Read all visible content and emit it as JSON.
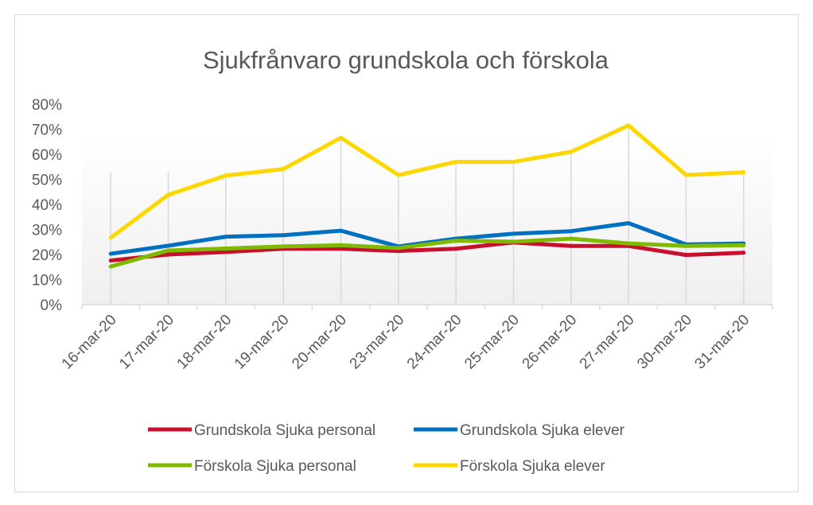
{
  "chart_data": {
    "type": "line",
    "title": "Sjukfrånvaro grundskola och förskola",
    "xlabel": "",
    "ylabel": "",
    "ylim": [
      0,
      0.8
    ],
    "yticks": [
      "0%",
      "10%",
      "20%",
      "30%",
      "40%",
      "50%",
      "60%",
      "70%",
      "80%"
    ],
    "categories": [
      "16-mar-20",
      "17-mar-20",
      "18-mar-20",
      "19-mar-20",
      "20-mar-20",
      "23-mar-20",
      "24-mar-20",
      "25-mar-20",
      "26-mar-20",
      "27-mar-20",
      "30-mar-20",
      "31-mar-20"
    ],
    "legend_position": "bottom",
    "series": [
      {
        "name": "Grundskola Sjuka personal",
        "color": "#c8102e",
        "values": [
          0.176,
          0.2,
          0.21,
          0.223,
          0.223,
          0.214,
          0.223,
          0.248,
          0.234,
          0.234,
          0.198,
          0.207
        ]
      },
      {
        "name": "Grundskola Sjuka elever",
        "color": "#0070c0",
        "values": [
          0.203,
          0.235,
          0.271,
          0.277,
          0.295,
          0.232,
          0.263,
          0.283,
          0.293,
          0.325,
          0.24,
          0.244
        ]
      },
      {
        "name": "Förskola Sjuka personal",
        "color": "#7fba00",
        "values": [
          0.152,
          0.216,
          0.224,
          0.232,
          0.237,
          0.226,
          0.255,
          0.251,
          0.263,
          0.244,
          0.234,
          0.237
        ]
      },
      {
        "name": "Förskola Sjuka elever",
        "color": "#ffd700",
        "values": [
          0.267,
          0.438,
          0.515,
          0.541,
          0.666,
          0.517,
          0.57,
          0.57,
          0.61,
          0.715,
          0.517,
          0.528
        ]
      }
    ]
  }
}
